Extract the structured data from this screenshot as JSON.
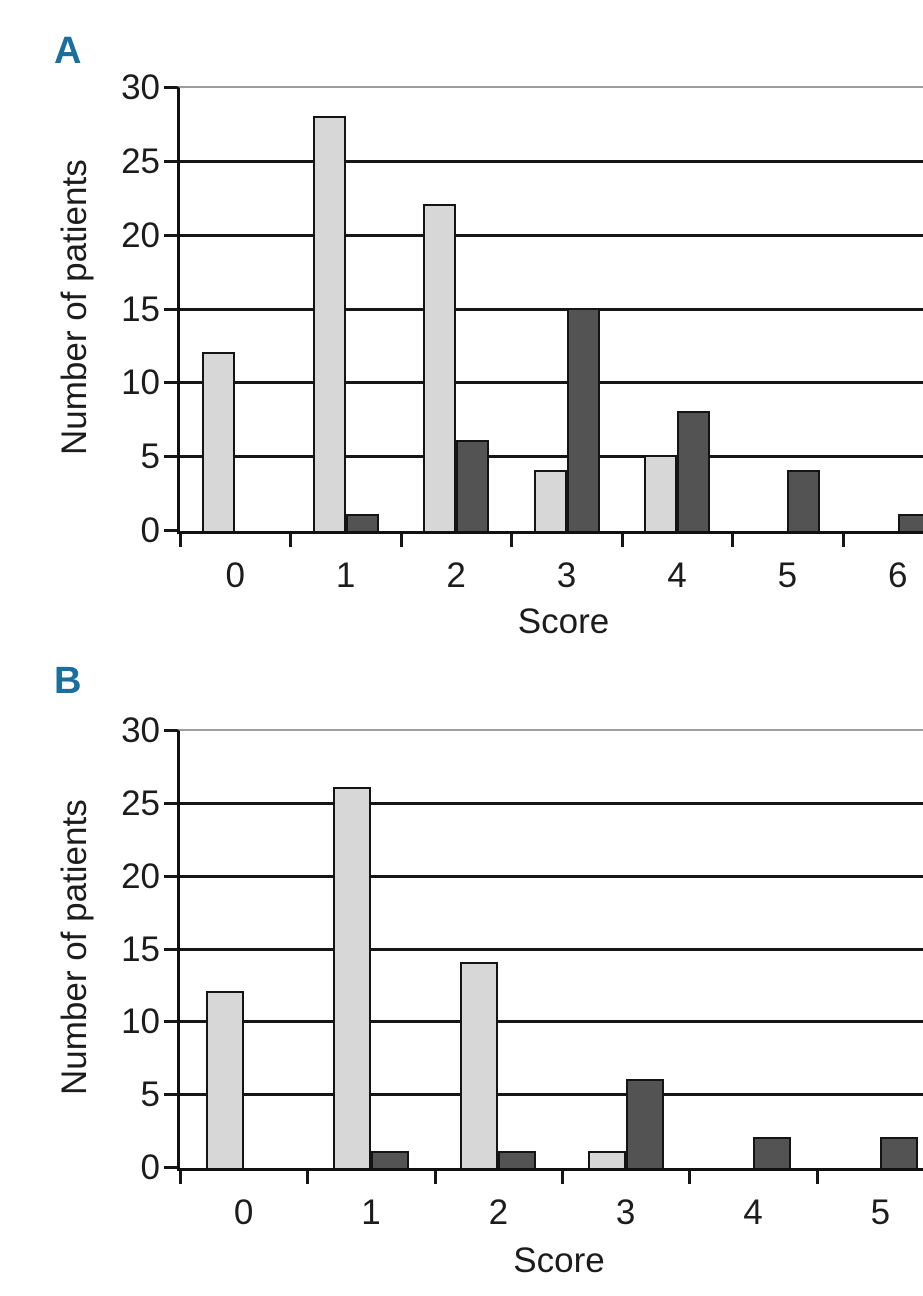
{
  "figure": {
    "accent_color": "#1a6f9c",
    "text_color": "#1c1c1c",
    "frame_gray": "#9e9e9e",
    "grid_black": "#161616"
  },
  "chart_data": [
    {
      "panel": "A",
      "type": "bar",
      "title": "",
      "xlabel": "Score",
      "ylabel": "Number of patients",
      "ylim": [
        0,
        30
      ],
      "ytick_step": 5,
      "yticks": [
        0,
        5,
        10,
        15,
        20,
        25,
        30
      ],
      "categories": [
        "0",
        "1",
        "2",
        "3",
        "4",
        "5",
        "6"
      ],
      "series": [
        {
          "name": "light-gray-bars",
          "color": "#d7d7d7",
          "values": [
            12,
            28,
            22,
            4,
            5,
            0,
            0
          ]
        },
        {
          "name": "dark-gray-bars",
          "color": "#535353",
          "values": [
            0,
            1,
            6,
            15,
            8,
            4,
            1
          ]
        }
      ],
      "grid": "horizontal",
      "legend": "none"
    },
    {
      "panel": "B",
      "type": "bar",
      "title": "",
      "xlabel": "Score",
      "ylabel": "Number of patients",
      "ylim": [
        0,
        30
      ],
      "ytick_step": 5,
      "yticks": [
        0,
        5,
        10,
        15,
        20,
        25,
        30
      ],
      "categories": [
        "0",
        "1",
        "2",
        "3",
        "4",
        "5"
      ],
      "series": [
        {
          "name": "light-gray-bars",
          "color": "#d7d7d7",
          "values": [
            12,
            26,
            14,
            1,
            0,
            0
          ]
        },
        {
          "name": "dark-gray-bars",
          "color": "#535353",
          "values": [
            0,
            1,
            1,
            6,
            2,
            2
          ]
        }
      ],
      "grid": "horizontal",
      "legend": "none"
    }
  ]
}
